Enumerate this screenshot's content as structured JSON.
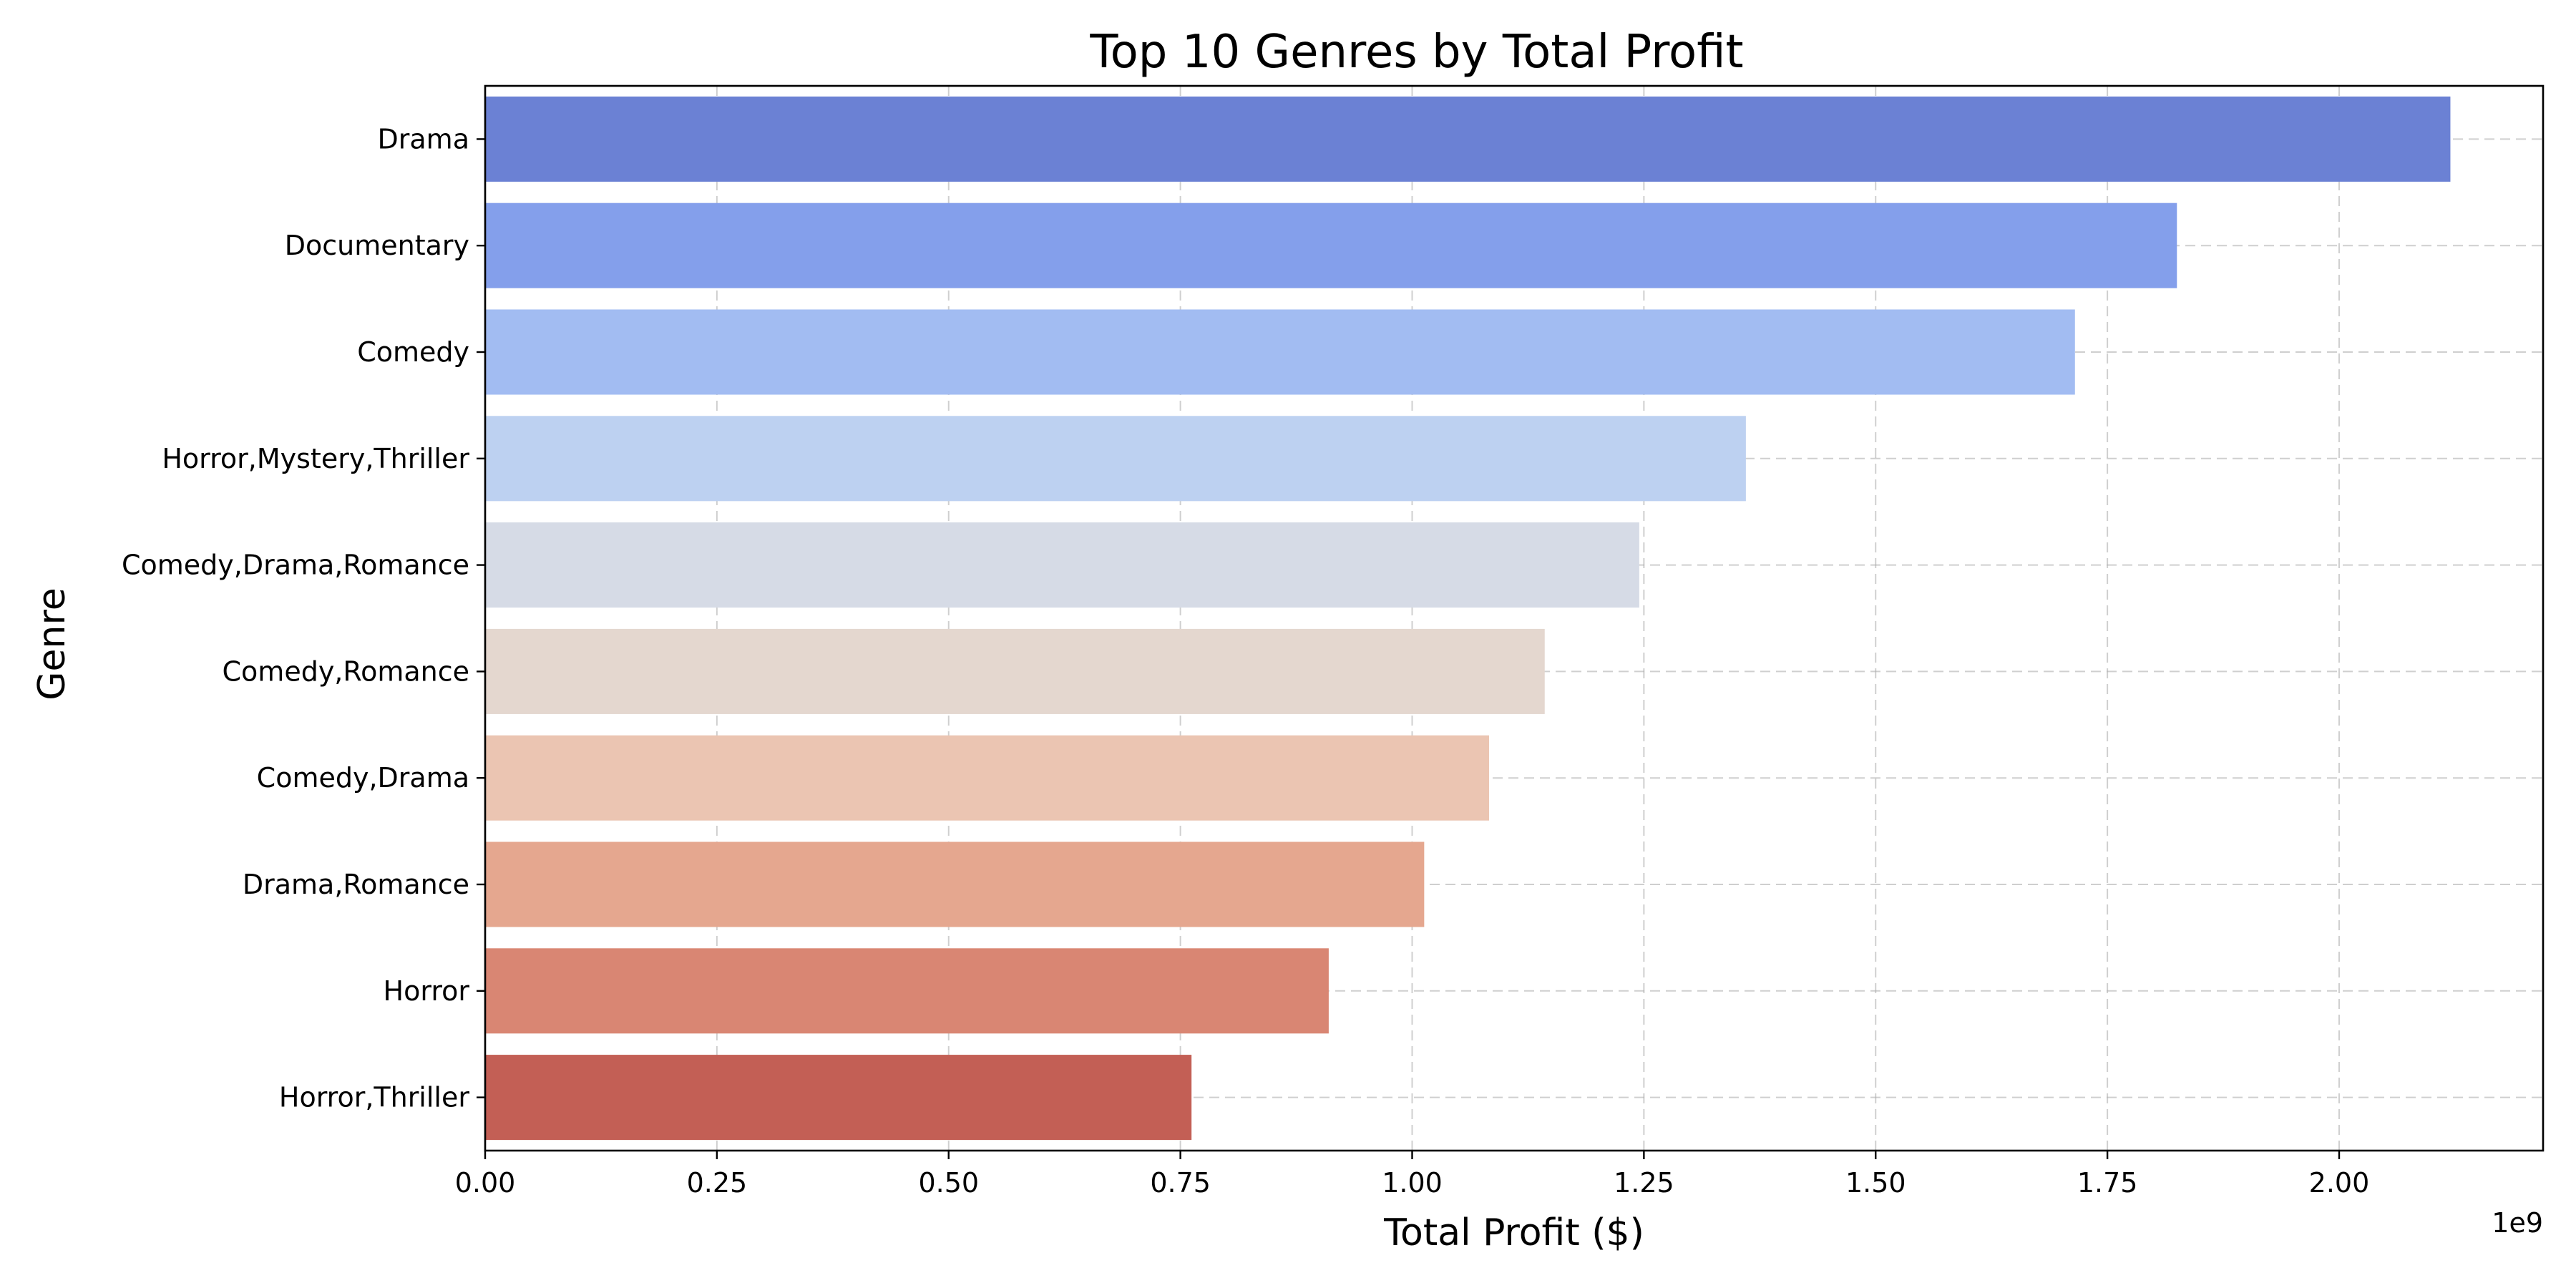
{
  "chart_data": {
    "type": "bar",
    "orientation": "horizontal",
    "title": "Top 10 Genres by Total Profit",
    "xlabel": "Total Profit ($)",
    "ylabel": "Genre",
    "x_offset_label": "1e9",
    "xlim": [
      0,
      2.22
    ],
    "xticks": [
      0.0,
      0.25,
      0.5,
      0.75,
      1.0,
      1.25,
      1.5,
      1.75,
      2.0
    ],
    "xtick_labels": [
      "0.00",
      "0.25",
      "0.50",
      "0.75",
      "1.00",
      "1.25",
      "1.50",
      "1.75",
      "2.00"
    ],
    "grid": true,
    "categories": [
      "Drama",
      "Documentary",
      "Comedy",
      "Horror,Mystery,Thriller",
      "Comedy,Drama,Romance",
      "Comedy,Romance",
      "Comedy,Drama",
      "Drama,Romance",
      "Horror",
      "Horror,Thriller"
    ],
    "values": [
      2.12,
      1.825,
      1.715,
      1.36,
      1.245,
      1.143,
      1.083,
      1.013,
      0.91,
      0.762
    ],
    "colors": [
      "#6b81d4",
      "#849feb",
      "#a2bcf2",
      "#bdd1f1",
      "#d6dbe6",
      "#e4d7cf",
      "#ebc5b2",
      "#e5a78f",
      "#d98673",
      "#c35f55"
    ]
  }
}
